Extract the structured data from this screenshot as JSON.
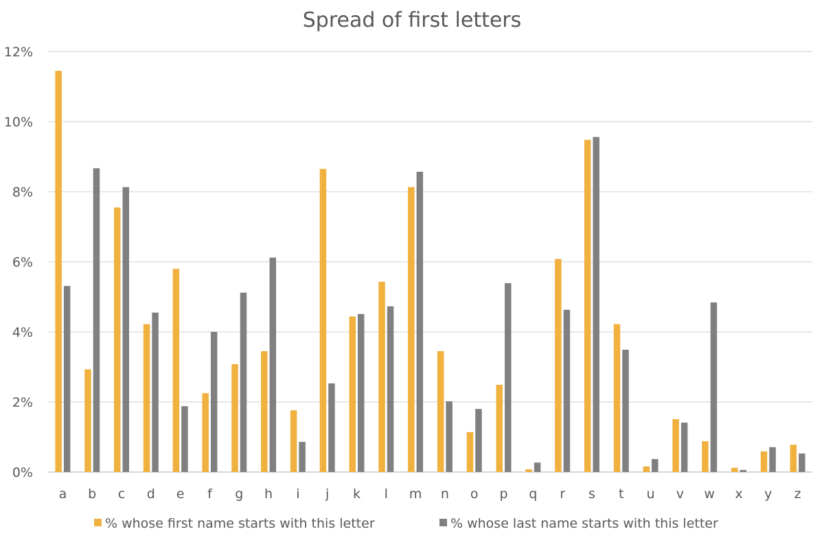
{
  "chart_data": {
    "type": "bar",
    "title": "Spread of first letters",
    "xlabel": "",
    "ylabel": "",
    "ylim": [
      0,
      12
    ],
    "yticks": [
      0,
      2,
      4,
      6,
      8,
      10,
      12
    ],
    "ytick_labels": [
      "0%",
      "2%",
      "4%",
      "6%",
      "8%",
      "10%",
      "12%"
    ],
    "grid": true,
    "legend_position": "bottom",
    "categories": [
      "a",
      "b",
      "c",
      "d",
      "e",
      "f",
      "g",
      "h",
      "i",
      "j",
      "k",
      "l",
      "m",
      "n",
      "o",
      "p",
      "q",
      "r",
      "s",
      "t",
      "u",
      "v",
      "w",
      "x",
      "y",
      "z"
    ],
    "series": [
      {
        "name": "% whose first name starts with this letter",
        "color": "#f0b13f",
        "values": [
          11.45,
          2.93,
          7.55,
          4.22,
          5.8,
          2.25,
          3.08,
          3.45,
          1.76,
          8.65,
          4.44,
          5.43,
          8.13,
          3.45,
          1.14,
          2.49,
          0.08,
          6.08,
          9.48,
          4.22,
          0.16,
          1.51,
          0.88,
          0.12,
          0.59,
          0.78
        ]
      },
      {
        "name": "% whose last name starts with this letter",
        "color": "#808080",
        "values": [
          5.31,
          8.67,
          8.13,
          4.55,
          1.88,
          4.0,
          5.12,
          6.12,
          0.86,
          2.53,
          4.51,
          4.73,
          8.57,
          2.02,
          1.8,
          5.39,
          0.27,
          4.63,
          9.56,
          3.49,
          0.37,
          1.41,
          4.84,
          0.06,
          0.71,
          0.53
        ]
      }
    ]
  }
}
